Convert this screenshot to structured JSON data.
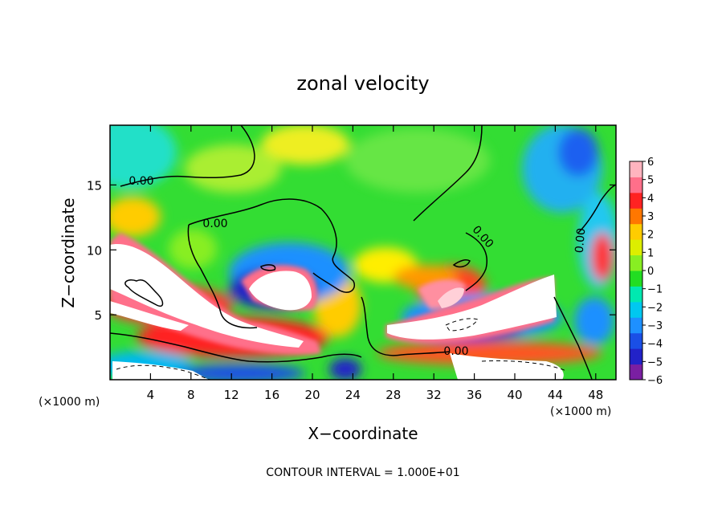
{
  "chart_data": {
    "type": "heatmap",
    "title": "zonal velocity",
    "xlabel": "X−coordinate",
    "ylabel": "Z−coordinate",
    "x_unit_left": "(×1000 m)",
    "x_unit_right": "(×1000 m)",
    "footer": "CONTOUR INTERVAL = 1.000E+01",
    "xlim": [
      0,
      50
    ],
    "ylim": [
      0,
      19.6
    ],
    "x_ticks": [
      4,
      8,
      12,
      16,
      20,
      24,
      28,
      32,
      36,
      40,
      44,
      48
    ],
    "x_tick_labels": [
      "4",
      "8",
      "12",
      "16",
      "20",
      "24",
      "28",
      "32",
      "36",
      "40",
      "44",
      "48"
    ],
    "y_ticks": [
      5,
      10,
      15
    ],
    "y_tick_labels": [
      "5",
      "10",
      "15"
    ],
    "colorbar": {
      "min": -6,
      "max": 6,
      "ticks": [
        6,
        5,
        4,
        3,
        2,
        1,
        0,
        -1,
        -2,
        -3,
        -4,
        -5,
        -6
      ],
      "tick_labels": [
        "6",
        "5",
        "4",
        "3",
        "2",
        "1",
        "0",
        "−1",
        "−2",
        "−3",
        "−4",
        "−5",
        "−6"
      ],
      "colors": [
        "#7a1fa2",
        "#2222c8",
        "#1a4fe6",
        "#1e90ff",
        "#00c8f0",
        "#00e8b0",
        "#22dd22",
        "#88ee22",
        "#ddee00",
        "#ffcc00",
        "#ff7700",
        "#ff2222",
        "#ff6f8a",
        "#ffb4bf"
      ]
    },
    "contour_labels": [
      "0.00",
      "0.00",
      "0.00",
      "0.00",
      "0.00"
    ]
  }
}
